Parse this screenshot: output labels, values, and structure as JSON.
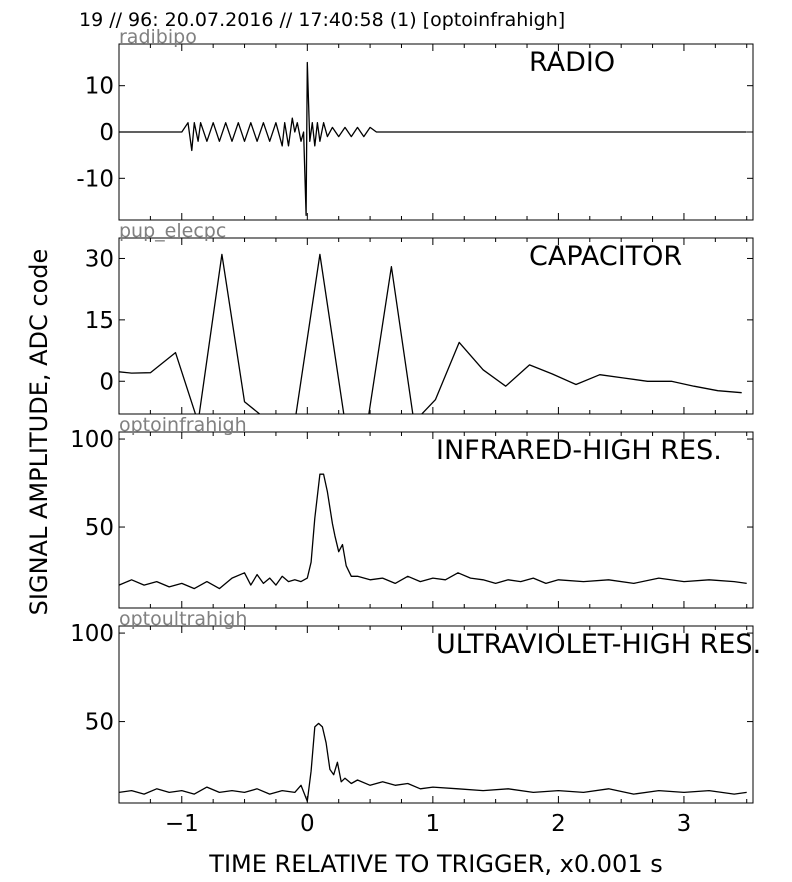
{
  "header": "19 // 96:   20.07.2016 // 17:40:58 (1)  [optoinfrahigh]",
  "ylabel": "SIGNAL AMPLITUDE,  ADC code",
  "xlabel": "TIME RELATIVE TO TRIGGER,   x0.001 s",
  "colors": {
    "line": "#000000",
    "subtitle": "#808080"
  },
  "chart_data": [
    {
      "type": "line",
      "title": "RADIO",
      "subtitle": "radibipo",
      "xlim": [
        -1.5,
        3.55
      ],
      "ylim": [
        -19,
        19
      ],
      "yticks": [
        10,
        0,
        -10
      ],
      "ytick_labels": [
        "10",
        "0",
        "-10"
      ],
      "x": [
        -1.5,
        -1.0,
        -0.95,
        -0.92,
        -0.9,
        -0.87,
        -0.85,
        -0.8,
        -0.75,
        -0.7,
        -0.65,
        -0.6,
        -0.55,
        -0.5,
        -0.45,
        -0.4,
        -0.35,
        -0.3,
        -0.25,
        -0.2,
        -0.18,
        -0.15,
        -0.12,
        -0.1,
        -0.08,
        -0.05,
        -0.03,
        -0.01,
        0.0,
        0.01,
        0.02,
        0.04,
        0.06,
        0.08,
        0.1,
        0.13,
        0.16,
        0.2,
        0.25,
        0.3,
        0.35,
        0.4,
        0.45,
        0.5,
        0.55,
        0.6,
        1.0,
        2.0,
        3.0,
        3.5
      ],
      "values": [
        0,
        0,
        2,
        -4,
        2,
        -2,
        2,
        -2,
        2,
        -2,
        2,
        -2,
        2,
        -2,
        2,
        -2,
        2,
        -2,
        2,
        -3,
        2,
        -3,
        3,
        0,
        2,
        -2,
        0,
        -18,
        15,
        6,
        -2,
        2,
        -3,
        2,
        -2,
        2,
        -1,
        1,
        -1,
        1,
        -1,
        1,
        -1,
        1,
        0,
        0,
        0,
        0,
        0,
        0
      ]
    },
    {
      "type": "line",
      "title": "CAPACITOR",
      "subtitle": "pup_elecpc",
      "xlim": [
        -1.5,
        3.55
      ],
      "ylim": [
        -8,
        35
      ],
      "yticks": [
        30,
        15,
        0
      ],
      "ytick_labels": [
        "30",
        "15",
        "0"
      ],
      "x": [
        -1.5,
        -1.4,
        -1.25,
        -1.05,
        -0.87,
        -0.68,
        -0.5,
        -0.3,
        -0.1,
        0.1,
        0.3,
        0.48,
        0.67,
        0.85,
        1.02,
        1.21,
        1.4,
        1.58,
        1.77,
        1.95,
        2.14,
        2.33,
        2.52,
        2.71,
        2.9,
        3.08,
        3.27,
        3.46
      ],
      "values": [
        2.3,
        2,
        2.1,
        7,
        -10,
        31,
        -5,
        -10,
        -10,
        31,
        -10,
        -10,
        28,
        -10,
        -4.5,
        9.5,
        2.8,
        -1.2,
        4,
        1.8,
        -0.8,
        1.6,
        0.8,
        0,
        0,
        -1.2,
        -2.3,
        -2.8
      ]
    },
    {
      "type": "line",
      "title": "INFRARED-HIGH RES.",
      "subtitle": "optoinfrahigh",
      "xlim": [
        -1.5,
        3.55
      ],
      "ylim": [
        4,
        104
      ],
      "yticks": [
        100,
        50
      ],
      "ytick_labels": [
        "100",
        "50"
      ],
      "x": [
        -1.5,
        -1.4,
        -1.3,
        -1.2,
        -1.1,
        -1.0,
        -0.9,
        -0.8,
        -0.7,
        -0.6,
        -0.5,
        -0.45,
        -0.4,
        -0.35,
        -0.3,
        -0.25,
        -0.2,
        -0.15,
        -0.1,
        -0.05,
        0.0,
        0.03,
        0.06,
        0.1,
        0.13,
        0.16,
        0.2,
        0.22,
        0.25,
        0.28,
        0.31,
        0.35,
        0.4,
        0.5,
        0.6,
        0.7,
        0.8,
        0.9,
        1.0,
        1.1,
        1.2,
        1.3,
        1.4,
        1.5,
        1.6,
        1.7,
        1.8,
        1.9,
        2.0,
        2.2,
        2.4,
        2.6,
        2.8,
        3.0,
        3.2,
        3.4,
        3.5
      ],
      "values": [
        17,
        20,
        17,
        19,
        16,
        18,
        15,
        19,
        15,
        21,
        24,
        17,
        23,
        18,
        21,
        17,
        22,
        19,
        20,
        19,
        21,
        30,
        55,
        80,
        80,
        70,
        52,
        45,
        36,
        40,
        28,
        22,
        22,
        20,
        21,
        18,
        22,
        19,
        21,
        20,
        24,
        21,
        20,
        18,
        20,
        19,
        21,
        18,
        20,
        19,
        20,
        18,
        21,
        19,
        20,
        19,
        18
      ]
    },
    {
      "type": "line",
      "title": "ULTRAVIOLET-HIGH RES.",
      "subtitle": "optoultrahigh",
      "xlim": [
        -1.5,
        3.55
      ],
      "ylim": [
        4,
        104
      ],
      "yticks": [
        100,
        50
      ],
      "ytick_labels": [
        "100",
        "50"
      ],
      "xticks": [
        -1,
        0,
        1,
        2,
        3
      ],
      "xtick_labels": [
        "−1",
        "0",
        "1",
        "2",
        "3"
      ],
      "x": [
        -1.5,
        -1.4,
        -1.3,
        -1.2,
        -1.1,
        -1.0,
        -0.9,
        -0.8,
        -0.7,
        -0.6,
        -0.5,
        -0.4,
        -0.3,
        -0.2,
        -0.1,
        -0.05,
        0.0,
        0.03,
        0.06,
        0.09,
        0.12,
        0.15,
        0.18,
        0.21,
        0.24,
        0.27,
        0.3,
        0.35,
        0.4,
        0.5,
        0.6,
        0.7,
        0.8,
        0.9,
        1.0,
        1.2,
        1.4,
        1.6,
        1.8,
        2.0,
        2.2,
        2.4,
        2.6,
        2.8,
        3.0,
        3.2,
        3.4,
        3.5
      ],
      "values": [
        10,
        11,
        9,
        12,
        10,
        11,
        9,
        13,
        10,
        11,
        10,
        12,
        9,
        11,
        10,
        14,
        5,
        22,
        47,
        49,
        47,
        38,
        23,
        20,
        27,
        16,
        18,
        15,
        17,
        14,
        16,
        14,
        15,
        12,
        13,
        12,
        11,
        12,
        10,
        11,
        10,
        12,
        9,
        11,
        10,
        11,
        9,
        10
      ]
    }
  ]
}
